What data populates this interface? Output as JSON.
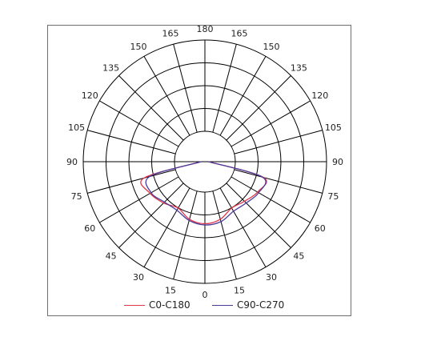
{
  "chart_data": {
    "type": "polar-line",
    "angle_labels": [
      "0",
      "15",
      "30",
      "45",
      "60",
      "75",
      "90",
      "105",
      "120",
      "135",
      "150",
      "165",
      "180"
    ],
    "rings": 5,
    "angle_step_deg": 15,
    "series": [
      {
        "name": "C0-C180",
        "color": "#e0364a",
        "angles": [
          -90,
          -75,
          -60,
          -45,
          -30,
          -15,
          0,
          15,
          30,
          45,
          60,
          75,
          90
        ],
        "values": [
          0.03,
          0.52,
          0.52,
          0.48,
          0.44,
          0.49,
          0.51,
          0.49,
          0.44,
          0.46,
          0.5,
          0.5,
          0.03
        ]
      },
      {
        "name": "C90-C270",
        "color": "#4a3a9a",
        "angles": [
          -90,
          -75,
          -60,
          -45,
          -30,
          -15,
          0,
          15,
          30,
          45,
          60,
          75,
          90
        ],
        "values": [
          0.03,
          0.47,
          0.51,
          0.47,
          0.46,
          0.5,
          0.52,
          0.51,
          0.47,
          0.48,
          0.51,
          0.49,
          0.03
        ]
      }
    ]
  }
}
